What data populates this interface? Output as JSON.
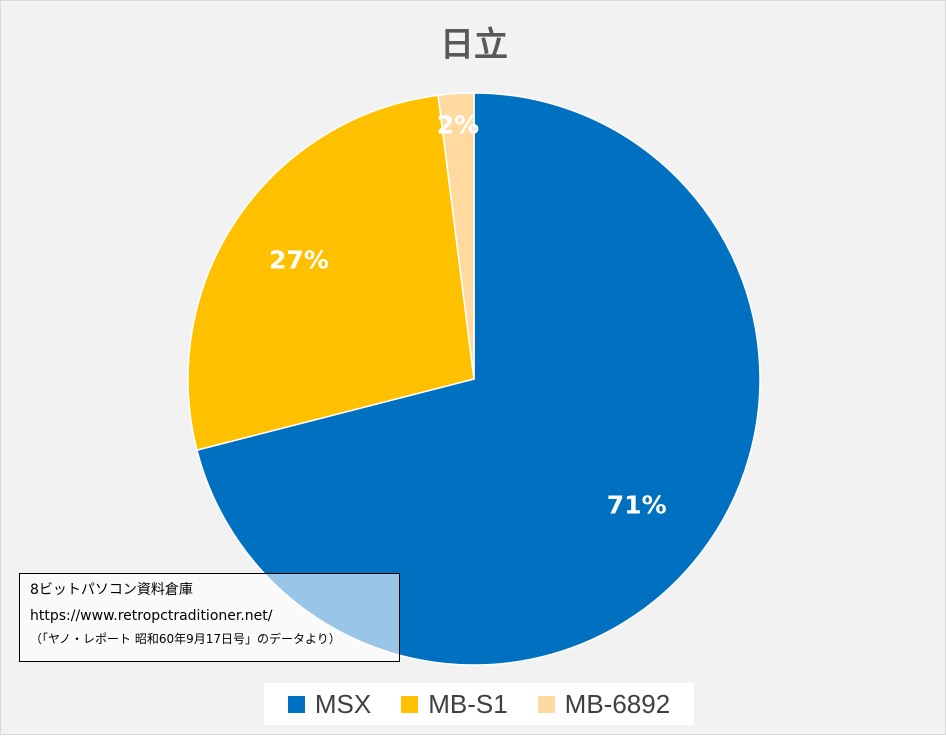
{
  "chart_data": {
    "type": "pie",
    "title": "日立",
    "categories": [
      "MSX",
      "MB-S1",
      "MB-6892"
    ],
    "values": [
      71,
      27,
      2
    ],
    "labels": [
      "71%",
      "27%",
      "2%"
    ],
    "colors": [
      "#0070C0",
      "#FFC000",
      "#FFD9A0"
    ],
    "legend_position": "bottom"
  },
  "source_box": {
    "line1": "8ビットパソコン資料倉庫",
    "line2": "https://www.retropctraditioner.net/",
    "line3": "（「ヤノ・レポート 昭和60年9月17日号」のデータより）"
  }
}
